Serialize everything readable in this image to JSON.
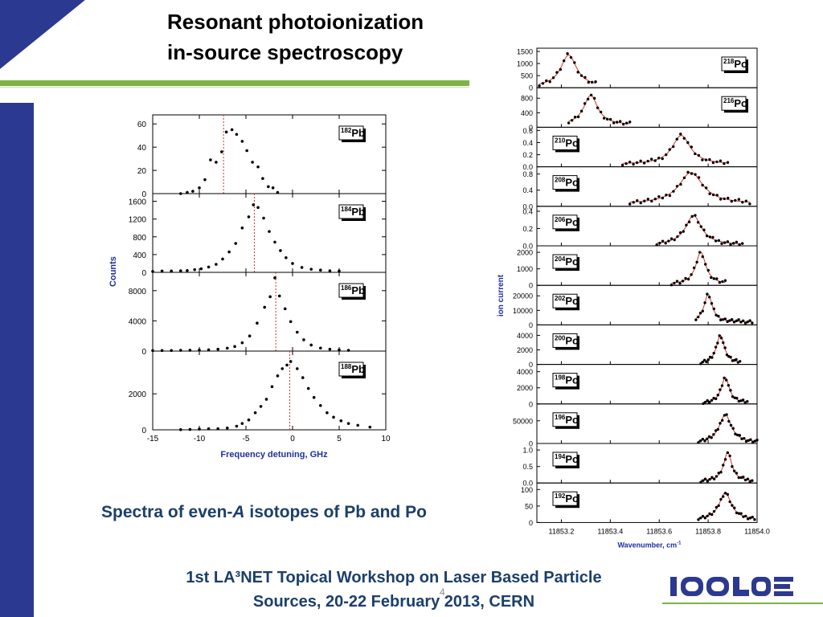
{
  "slide": {
    "title_line1": "Resonant photoionization",
    "title_line2": "in-source spectroscopy",
    "caption_pre": "Spectra of even-",
    "caption_italic": "A",
    "caption_post": "  isotopes of Pb and Po",
    "footer_line1": "1st LA³NET Topical Workshop on Laser Based Particle",
    "footer_line2": "Sources, 20-22 February 2013,   CERN",
    "page_number": "4",
    "logo_text": "ISOLDE",
    "colors": {
      "navy": "#2b3990",
      "green": "#7cb342",
      "text_blue": "#1b3f6b",
      "axis_blue": "#1f2fa0",
      "fit_red": "#d9302a"
    }
  },
  "chart_data": [
    {
      "type": "scatter",
      "title": "",
      "xlabel": "Frequency detuning, GHz",
      "ylabel": "Counts",
      "xlim": [
        -15,
        10
      ],
      "xticks": [
        "-15",
        "-10",
        "-5",
        "0",
        "5",
        "10"
      ],
      "panels": [
        {
          "label_mass": "182",
          "label_elem": "Pb",
          "ylim": [
            0,
            65
          ],
          "yticks": [
            "0",
            "20",
            "40",
            "60"
          ],
          "peak_line_x": -7.4,
          "x": [
            -12.0,
            -11.3,
            -10.7,
            -10.0,
            -9.4,
            -8.8,
            -8.2,
            -7.6,
            -7.1,
            -6.5,
            -6.0,
            -5.4,
            -4.9,
            -4.3,
            -3.7,
            -3.2,
            -2.6,
            -2.1,
            -1.6
          ],
          "y": [
            0,
            1,
            2,
            5,
            12,
            29,
            27,
            36,
            53,
            55,
            51,
            45,
            37,
            27,
            23,
            13,
            6,
            5,
            1
          ]
        },
        {
          "label_mass": "184",
          "label_elem": "Pb",
          "ylim": [
            0,
            1700
          ],
          "yticks": [
            "0",
            "400",
            "800",
            "1200",
            "1600"
          ],
          "peak_line_x": -4.1,
          "x": [
            -15,
            -14,
            -13,
            -12,
            -11.3,
            -10.5,
            -9.8,
            -9.0,
            -8.2,
            -7.5,
            -6.8,
            -6.1,
            -5.4,
            -4.7,
            -4.2,
            -3.7,
            -3.1,
            -2.5,
            -1.9,
            -1.3,
            -0.7,
            0,
            1.0,
            2.0,
            3.0,
            4.0,
            5.0
          ],
          "y": [
            20,
            30,
            30,
            35,
            40,
            60,
            80,
            120,
            180,
            300,
            460,
            650,
            1000,
            1250,
            1520,
            1460,
            1220,
            920,
            680,
            490,
            330,
            200,
            110,
            70,
            50,
            35,
            30
          ]
        },
        {
          "label_mass": "186",
          "label_elem": "Pb",
          "ylim": [
            0,
            10000
          ],
          "yticks": [
            "0",
            "4000",
            "8000"
          ],
          "peak_line_x": -1.8,
          "x": [
            -15,
            -14,
            -13,
            -12,
            -11,
            -10,
            -9,
            -8,
            -7,
            -6.2,
            -5.4,
            -4.6,
            -3.8,
            -3.0,
            -2.4,
            -1.9,
            -1.4,
            -0.8,
            -0.2,
            0.5,
            1.2,
            2.0,
            3.0,
            4.0,
            5.0,
            6.0
          ],
          "y": [
            60,
            70,
            80,
            100,
            110,
            130,
            170,
            250,
            380,
            600,
            1100,
            2000,
            3700,
            5800,
            7200,
            9700,
            7300,
            5600,
            3900,
            2500,
            1500,
            800,
            400,
            250,
            150,
            100
          ]
        },
        {
          "label_mass": "188",
          "label_elem": "Pb",
          "ylim": [
            0,
            4200
          ],
          "yticks": [
            "0",
            "2000"
          ],
          "peak_line_x": -0.3,
          "x": [
            -12,
            -11,
            -10,
            -9,
            -8,
            -7,
            -6,
            -5.4,
            -4.7,
            -4.0,
            -3.4,
            -2.8,
            -2.2,
            -1.6,
            -1.1,
            -0.6,
            -0.2,
            0.5,
            1.1,
            1.7,
            2.3,
            3.0,
            3.7,
            4.4,
            5.2,
            6.0,
            7.0,
            8.3
          ],
          "y": [
            10,
            20,
            40,
            60,
            60,
            100,
            200,
            350,
            550,
            950,
            1300,
            1700,
            2400,
            3000,
            3400,
            3600,
            3800,
            3400,
            2900,
            2300,
            1800,
            1350,
            950,
            700,
            500,
            350,
            250,
            150
          ]
        }
      ]
    },
    {
      "type": "scatter",
      "title": "",
      "xlabel": "Wavenumber, cm",
      "xlabel_sup": "-1",
      "ylabel": "ion current",
      "xlim": [
        11853.1,
        11854.0
      ],
      "xticks": [
        {
          "v": 11853.2,
          "t": "11853.2"
        },
        {
          "v": 11853.4,
          "t": "11853.4"
        },
        {
          "v": 11853.6,
          "t": "11853.6"
        },
        {
          "v": 11853.8,
          "t": "11853.8"
        },
        {
          "v": 11854.0,
          "t": "11854.0"
        }
      ],
      "panels": [
        {
          "label_mass": "218",
          "label_elem": "Po",
          "ylim": [
            0,
            1500
          ],
          "yticks": [
            {
              "v": 0,
              "t": "0"
            },
            {
              "v": 500,
              "t": "500"
            },
            {
              "v": 1000,
              "t": "1000"
            },
            {
              "v": 1500,
              "t": "1500"
            }
          ],
          "center": 11853.23,
          "width": 0.04,
          "amp": 1320,
          "base": 30,
          "xrange": [
            11853.11,
            11853.34
          ],
          "n": 17
        },
        {
          "label_mass": "216",
          "label_elem": "Po",
          "ylim": [
            0,
            1000
          ],
          "yticks": [
            {
              "v": 0,
              "t": "0"
            },
            {
              "v": 400,
              "t": "400"
            },
            {
              "v": 800,
              "t": "800"
            }
          ],
          "center": 11853.32,
          "width": 0.035,
          "amp": 820,
          "base": 60,
          "xrange": [
            11853.23,
            11853.48
          ],
          "n": 20
        },
        {
          "label_mass": "210",
          "label_elem": "Po",
          "ylim": [
            0,
            0.6
          ],
          "yticks": [
            {
              "v": 0,
              "t": "0.0"
            },
            {
              "v": 0.2,
              "t": "0.2"
            },
            {
              "v": 0.4,
              "t": "0.4"
            },
            {
              "v": 0.6,
              "t": "0.6"
            }
          ],
          "center": 11853.69,
          "width": 0.045,
          "amp": 0.48,
          "base": 0.04,
          "xrange": [
            11853.45,
            11853.88
          ],
          "n": 30
        },
        {
          "label_mass": "208",
          "label_elem": "Po",
          "ylim": [
            0,
            0.9
          ],
          "yticks": [
            {
              "v": 0,
              "t": "0.0"
            },
            {
              "v": 0.4,
              "t": "0.4"
            },
            {
              "v": 0.8,
              "t": "0.8"
            }
          ],
          "center": 11853.73,
          "width": 0.06,
          "amp": 0.78,
          "base": 0.06,
          "xrange": [
            11853.48,
            11853.97
          ],
          "n": 34
        },
        {
          "label_mass": "206",
          "label_elem": "Po",
          "ylim": [
            0,
            0.42
          ],
          "yticks": [
            {
              "v": 0,
              "t": "0.0"
            },
            {
              "v": 0.2,
              "t": "0.2"
            },
            {
              "v": 0.4,
              "t": "0.4"
            }
          ],
          "center": 11853.74,
          "width": 0.04,
          "amp": 0.34,
          "base": 0.01,
          "xrange": [
            11853.59,
            11853.94
          ],
          "n": 30
        },
        {
          "label_mass": "204",
          "label_elem": "Po",
          "ylim": [
            0,
            2200
          ],
          "yticks": [
            {
              "v": 0,
              "t": "0"
            },
            {
              "v": 1000,
              "t": "1000"
            },
            {
              "v": 2000,
              "t": "2000"
            }
          ],
          "center": 11853.77,
          "width": 0.025,
          "amp": 1950,
          "base": 60,
          "xrange": [
            11853.65,
            11853.87
          ],
          "n": 20
        },
        {
          "label_mass": "202",
          "label_elem": "Po",
          "ylim": [
            0,
            25000
          ],
          "yticks": [
            {
              "v": 0,
              "t": "0"
            },
            {
              "v": 10000,
              "t": "10000"
            },
            {
              "v": 20000,
              "t": "20000"
            }
          ],
          "center": 11853.8,
          "width": 0.02,
          "amp": 19000,
          "base": 2000,
          "xrange": [
            11853.75,
            11853.98
          ],
          "n": 26
        },
        {
          "label_mass": "200",
          "label_elem": "Po",
          "ylim": [
            0,
            5000
          ],
          "yticks": [
            {
              "v": 0,
              "t": "0"
            },
            {
              "v": 2000,
              "t": "2000"
            },
            {
              "v": 4000,
              "t": "4000"
            }
          ],
          "center": 11853.85,
          "width": 0.02,
          "amp": 3900,
          "base": 100,
          "xrange": [
            11853.77,
            11853.93
          ],
          "n": 22
        },
        {
          "label_mass": "198",
          "label_elem": "Po",
          "ylim": [
            0,
            4500
          ],
          "yticks": [
            {
              "v": 0,
              "t": "0"
            },
            {
              "v": 2000,
              "t": "2000"
            },
            {
              "v": 4000,
              "t": "4000"
            }
          ],
          "center": 11853.87,
          "width": 0.02,
          "amp": 3200,
          "base": 80,
          "xrange": [
            11853.78,
            11853.96
          ],
          "n": 22
        },
        {
          "label_mass": "196",
          "label_elem": "Po",
          "ylim": [
            0,
            80000
          ],
          "yticks": [
            {
              "v": 0,
              "t": "0"
            },
            {
              "v": 50000,
              "t": "50000"
            }
          ],
          "center": 11853.87,
          "width": 0.03,
          "amp": 62000,
          "base": 1500,
          "xrange": [
            11853.76,
            11854.0
          ],
          "n": 28
        },
        {
          "label_mass": "194",
          "label_elem": "Po",
          "ylim": [
            0,
            1.1
          ],
          "yticks": [
            {
              "v": 0,
              "t": "0.0"
            },
            {
              "v": 0.5,
              "t": "0.5"
            },
            {
              "v": 1.0,
              "t": "1.0"
            }
          ],
          "center": 11853.88,
          "width": 0.02,
          "amp": 0.88,
          "base": 0.05,
          "xrange": [
            11853.77,
            11853.98
          ],
          "n": 24
        },
        {
          "label_mass": "192",
          "label_elem": "Po",
          "ylim": [
            0,
            110
          ],
          "yticks": [
            {
              "v": 0,
              "t": "0"
            },
            {
              "v": 50,
              "t": "50"
            },
            {
              "v": 100,
              "t": "100"
            }
          ],
          "center": 11853.87,
          "width": 0.03,
          "amp": 82,
          "base": 8,
          "xrange": [
            11853.76,
            11853.99
          ],
          "n": 26
        }
      ]
    }
  ]
}
